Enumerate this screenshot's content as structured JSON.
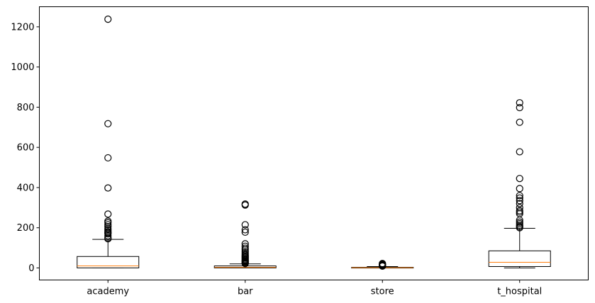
{
  "chart_data": {
    "type": "box",
    "title": "",
    "xlabel": "",
    "ylabel": "",
    "ylim": [
      -60,
      1300
    ],
    "yticks": [
      0,
      200,
      400,
      600,
      800,
      1000,
      1200
    ],
    "ytick_labels": [
      "0",
      "200",
      "400",
      "600",
      "800",
      "1000",
      "1200"
    ],
    "grid": false,
    "categories": [
      "academy",
      "bar",
      "store",
      "t_hospital"
    ],
    "boxes": [
      {
        "category": "academy",
        "whisker_low": 0,
        "q1": 0,
        "median": 10,
        "q3": 57,
        "whisker_high": 142,
        "outliers": [
          145,
          150,
          160,
          170,
          175,
          180,
          188,
          195,
          205,
          215,
          225,
          233,
          268,
          398,
          548,
          718,
          1238
        ]
      },
      {
        "category": "bar",
        "whisker_low": 0,
        "q1": 0,
        "median": 3,
        "q3": 10,
        "whisker_high": 20,
        "outliers": [
          22,
          25,
          28,
          32,
          36,
          40,
          45,
          50,
          55,
          60,
          65,
          72,
          80,
          90,
          98,
          108,
          120,
          178,
          190,
          215,
          313,
          318
        ]
      },
      {
        "category": "store",
        "whisker_low": 0,
        "q1": 0,
        "median": 1,
        "q3": 3,
        "whisker_high": 7,
        "outliers": [
          9,
          11,
          13,
          16,
          19,
          22
        ]
      },
      {
        "category": "t_hospital",
        "whisker_low": 0,
        "q1": 7,
        "median": 28,
        "q3": 85,
        "whisker_high": 197,
        "outliers": [
          200,
          205,
          212,
          220,
          228,
          238,
          270,
          278,
          285,
          300,
          320,
          335,
          348,
          360,
          395,
          445,
          578,
          725,
          798,
          822
        ]
      }
    ],
    "colors": {
      "box": "#000000",
      "median": "#ff7f0e",
      "outlier_edge": "#000000",
      "background": "#ffffff"
    }
  }
}
